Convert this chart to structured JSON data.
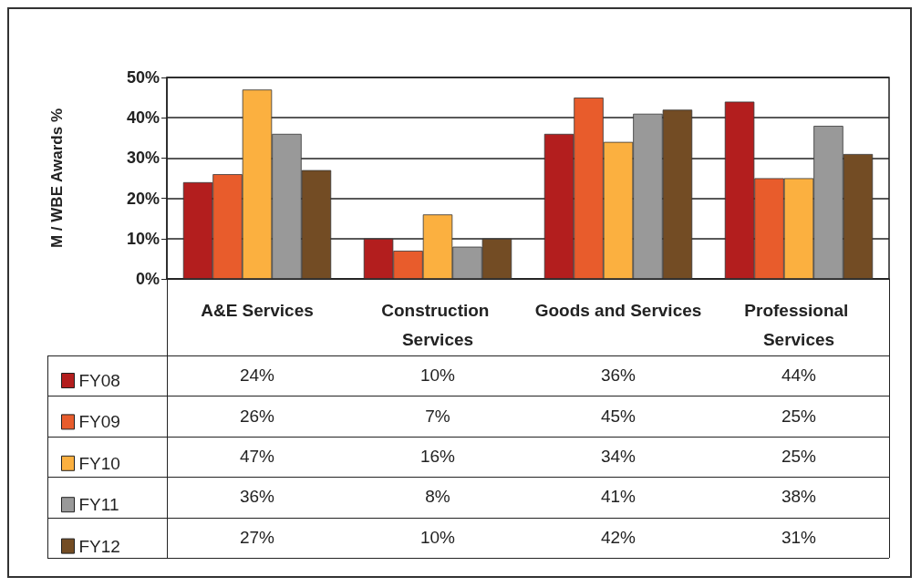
{
  "chart_data": {
    "type": "bar",
    "ylabel": "M / WBE Awards %",
    "categories": [
      "A&E Services",
      "Construction Services",
      "Goods and Services",
      "Professional Services"
    ],
    "series": [
      {
        "name": "FY08",
        "color": "#b31e1e",
        "values": [
          24,
          10,
          36,
          44
        ],
        "value_labels": [
          "24%",
          "10%",
          "36%",
          "44%"
        ]
      },
      {
        "name": "FY09",
        "color": "#e85c2c",
        "values": [
          26,
          7,
          45,
          25
        ],
        "value_labels": [
          "26%",
          "7%",
          "45%",
          "25%"
        ]
      },
      {
        "name": "FY10",
        "color": "#fbb040",
        "values": [
          47,
          16,
          34,
          25
        ],
        "value_labels": [
          "47%",
          "16%",
          "34%",
          "25%"
        ]
      },
      {
        "name": "FY11",
        "color": "#999999",
        "values": [
          36,
          8,
          41,
          38
        ],
        "value_labels": [
          "36%",
          "8%",
          "41%",
          "38%"
        ]
      },
      {
        "name": "FY12",
        "color": "#734c24",
        "values": [
          27,
          10,
          42,
          31
        ],
        "value_labels": [
          "27%",
          "10%",
          "42%",
          "31%"
        ]
      }
    ],
    "ylim": [
      0,
      50
    ],
    "yticks": [
      {
        "value": 0,
        "label": "0%"
      },
      {
        "value": 10,
        "label": "10%"
      },
      {
        "value": 20,
        "label": "20%"
      },
      {
        "value": 30,
        "label": "30%"
      },
      {
        "value": 40,
        "label": "40%"
      },
      {
        "value": 50,
        "label": "50%"
      }
    ],
    "grid": "y",
    "legend": "bottom"
  }
}
